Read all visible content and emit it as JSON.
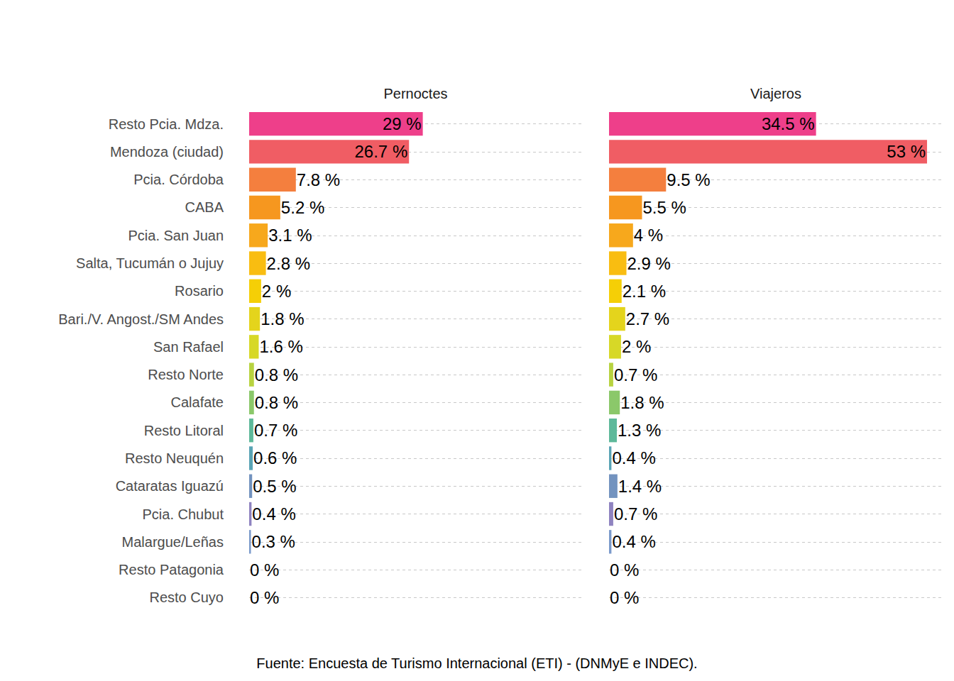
{
  "chart_data": [
    {
      "type": "bar",
      "title": "Pernoctes",
      "orientation": "horizontal",
      "data_labels": true,
      "grid": true,
      "tick_labels": "y",
      "categories": [
        "Resto Pcia. Mdza.",
        "Mendoza (ciudad)",
        "Pcia. Córdoba",
        "CABA",
        "Pcia. San Juan",
        "Salta, Tucumán o Jujuy",
        "Rosario",
        "Bari./V. Angost./SM Andes",
        "San Rafael",
        "Resto Norte",
        "Calafate",
        "Resto Litoral",
        "Resto Neuquén",
        "Cataratas Iguazú",
        "Pcia. Chubut",
        "Malargue/Leñas",
        "Resto Patagonia",
        "Resto Cuyo"
      ],
      "values": [
        29,
        26.7,
        7.8,
        5.2,
        3.1,
        2.8,
        2,
        1.8,
        1.6,
        0.8,
        0.8,
        0.7,
        0.6,
        0.5,
        0.4,
        0.3,
        0,
        0
      ],
      "value_labels": [
        "29 %",
        "26.7 %",
        "7.8 %",
        "5.2 %",
        "3.1 %",
        "2.8 %",
        "2 %",
        "1.8 %",
        "1.6 %",
        "0.8 %",
        "0.8 %",
        "0.7 %",
        "0.6 %",
        "0.5 %",
        "0.4 %",
        "0.3 %",
        "0 %",
        "0 %"
      ],
      "colors": [
        "#EE3F8A",
        "#F05D64",
        "#F47F3E",
        "#F6971F",
        "#F7A81C",
        "#F9BD11",
        "#F5CF06",
        "#E4D41C",
        "#D7D827",
        "#B8D340",
        "#8BC86A",
        "#5EB99A",
        "#5AA4B5",
        "#7393BF",
        "#8F83C0",
        "#7B9ACB",
        "#9B8BC4",
        "#A98DC0"
      ],
      "xlim": [
        0,
        55.6
      ]
    },
    {
      "type": "bar",
      "title": "Viajeros",
      "orientation": "horizontal",
      "data_labels": true,
      "grid": true,
      "tick_labels": false,
      "categories": [
        "Resto Pcia. Mdza.",
        "Mendoza (ciudad)",
        "Pcia. Córdoba",
        "CABA",
        "Pcia. San Juan",
        "Salta, Tucumán o Jujuy",
        "Rosario",
        "Bari./V. Angost./SM Andes",
        "San Rafael",
        "Resto Norte",
        "Calafate",
        "Resto Litoral",
        "Resto Neuquén",
        "Cataratas Iguazú",
        "Pcia. Chubut",
        "Malargue/Leñas",
        "Resto Patagonia",
        "Resto Cuyo"
      ],
      "values": [
        34.5,
        53,
        9.5,
        5.5,
        4,
        2.9,
        2.1,
        2.7,
        2,
        0.7,
        1.8,
        1.3,
        0.4,
        1.4,
        0.7,
        0.4,
        0,
        0
      ],
      "value_labels": [
        "34.5 %",
        "53 %",
        "9.5 %",
        "5.5 %",
        "4 %",
        "2.9 %",
        "2.1 %",
        "2.7 %",
        "2 %",
        "0.7 %",
        "1.8 %",
        "1.3 %",
        "0.4 %",
        "1.4 %",
        "0.7 %",
        "0.4 %",
        "0 %",
        "0 %"
      ],
      "colors": [
        "#EE3F8A",
        "#F05D64",
        "#F47F3E",
        "#F6971F",
        "#F7A81C",
        "#F9BD11",
        "#F5CF06",
        "#E4D41C",
        "#D7D827",
        "#B8D340",
        "#8BC86A",
        "#5EB99A",
        "#5AA4B5",
        "#7393BF",
        "#8F83C0",
        "#7B9ACB",
        "#9B8BC4",
        "#A98DC0"
      ],
      "xlim": [
        0,
        55.6
      ]
    }
  ],
  "caption": "Fuente: Encuesta de Turismo Internacional (ETI) - (DNMyE e INDEC)."
}
